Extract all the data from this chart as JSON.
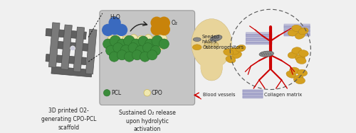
{
  "bg_color": "#f0f0f0",
  "panel_bg": "#c8c8c8",
  "fig_width": 5.0,
  "fig_height": 1.88,
  "dpi": 100,
  "scaffold_color": "#707070",
  "scaffold_label": "3D printed O2-\ngenerating CPO-PCL\nscaffold",
  "middle_label": "Sustained O₂ release\nupon hydrolytic\nactivation",
  "h2o_color": "#3a6abf",
  "o2_color": "#c8830a",
  "pcl_color": "#3a8c3a",
  "cpo_color": "#f0e8b0",
  "arrow_color": "#333333",
  "dashed_circle_color": "#555555",
  "blood_vessel_color": "#cc0000",
  "collagen_color": "#9090c0",
  "hasc_color": "#888888",
  "osteoprogenitor_color": "#d4a020",
  "skull_color": "#e8d49a",
  "legend_labels": [
    "Seeded\nhASCs",
    "Osteoprogenitors",
    "Blood vessels",
    "Collagen matrix"
  ],
  "pcl_label": "PCL",
  "cpo_label": "CPO",
  "h2o_label": "H₂O",
  "o2_label": "O₂"
}
